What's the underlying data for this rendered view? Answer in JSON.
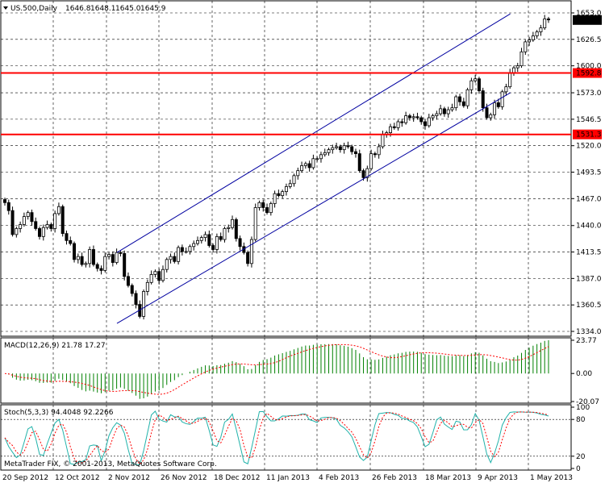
{
  "header": {
    "symbol": "US.500,Daily",
    "ohlc": [
      "1646.8",
      "1648.1",
      "1645.0",
      "1645.9"
    ]
  },
  "footer": {
    "copyright": "MetaTrader FIX, © 2001-2013, MetaQuotes Software Corp."
  },
  "chart_data": [
    {
      "type": "candlestick",
      "title": "US.500,Daily",
      "y_ticks": [
        "1653.0",
        "1626.5",
        "1600.0",
        "1573.0",
        "1546.5",
        "1520.0",
        "1493.5",
        "1467.0",
        "1440.0",
        "1413.5",
        "1387.0",
        "1360.5",
        "1334.0"
      ],
      "ylim": [
        1334.0,
        1653.0
      ],
      "current_price": "1645.9",
      "levels": [
        {
          "label": "1592.8",
          "value": 1592.8,
          "color": "#ff0000"
        },
        {
          "label": "1531.3",
          "value": 1531.3,
          "color": "#ff0000"
        }
      ],
      "channel": [
        {
          "from": [
            0,
            1413.0
          ],
          "to": [
            102,
            1652.0
          ]
        },
        {
          "from": [
            0,
            1342.0
          ],
          "to": [
            102,
            1573.0
          ]
        }
      ],
      "close": [
        1463,
        1455,
        1431,
        1437,
        1441,
        1449,
        1453,
        1444,
        1437,
        1429,
        1438,
        1441,
        1437,
        1452,
        1459,
        1432,
        1425,
        1422,
        1406,
        1409,
        1401,
        1402,
        1416,
        1401,
        1397,
        1395,
        1409,
        1411,
        1403,
        1413,
        1412,
        1389,
        1380,
        1372,
        1361,
        1349,
        1374,
        1383,
        1391,
        1394,
        1385,
        1396,
        1406,
        1409,
        1404,
        1418,
        1414,
        1414,
        1419,
        1422,
        1425,
        1428,
        1431,
        1420,
        1416,
        1429,
        1426,
        1437,
        1438,
        1446,
        1427,
        1419,
        1413,
        1402,
        1426,
        1458,
        1463,
        1458,
        1453,
        1462,
        1472,
        1470,
        1474,
        1479,
        1482,
        1490,
        1495,
        1500,
        1502,
        1498,
        1507,
        1507,
        1511,
        1513,
        1516,
        1518,
        1519,
        1516,
        1520,
        1519,
        1514,
        1512,
        1495,
        1488,
        1497,
        1512,
        1511,
        1519,
        1531,
        1533,
        1539,
        1538,
        1544,
        1543,
        1550,
        1548,
        1549,
        1548,
        1544,
        1540,
        1548,
        1550,
        1552,
        1557,
        1552,
        1556,
        1558,
        1569,
        1564,
        1560,
        1576,
        1585,
        1587,
        1575,
        1558,
        1548,
        1551,
        1563,
        1559,
        1574,
        1579,
        1593,
        1598,
        1600,
        1614,
        1624,
        1626,
        1630,
        1634,
        1638,
        1647,
        1646
      ],
      "x_ticks": [
        "20 Sep 2012",
        "12 Oct 2012",
        "2 Nov 2012",
        "26 Nov 2012",
        "18 Dec 2012",
        "11 Jan 2013",
        "4 Feb 2013",
        "26 Feb 2013",
        "18 Mar 2013",
        "9 Apr 2013",
        "1 May 2013"
      ]
    },
    {
      "type": "bar",
      "title": "MACD(12,26,9) 21.78 17.27",
      "y_ticks": [
        "23.77",
        "0.00",
        "-20.07"
      ],
      "ylim": [
        -20.07,
        23.77
      ],
      "series": [
        {
          "name": "MACD",
          "style": "histogram",
          "color": "#008000"
        },
        {
          "name": "Signal",
          "style": "dotted-line",
          "color": "#ff0000"
        }
      ]
    },
    {
      "type": "line",
      "title": "Stoch(5,3,3) 94.4048 92.2266",
      "y_ticks": [
        "100",
        "80",
        "20",
        "0"
      ],
      "ylim": [
        0,
        100
      ],
      "levels": [
        80,
        20
      ],
      "series": [
        {
          "name": "Main",
          "color": "#20b2aa"
        },
        {
          "name": "Signal",
          "style": "dotted-line",
          "color": "#ff0000"
        }
      ]
    }
  ]
}
